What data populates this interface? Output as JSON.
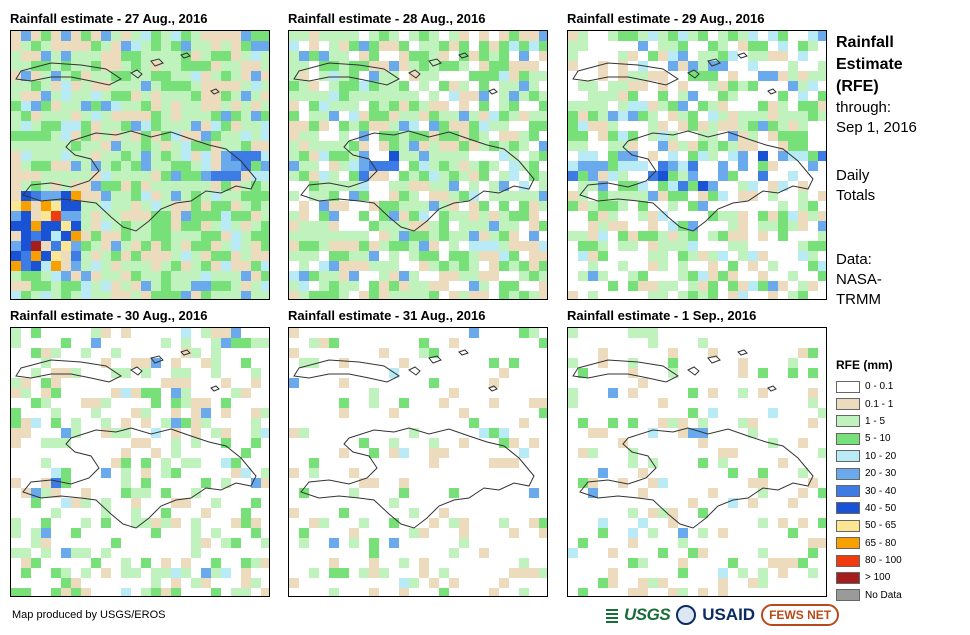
{
  "panels": [
    {
      "title": "Rainfall estimate - 27 Aug., 2016",
      "wetness": 0.92,
      "hotspot": "sw"
    },
    {
      "title": "Rainfall estimate - 28 Aug., 2016",
      "wetness": 0.72,
      "hotspot": "center"
    },
    {
      "title": "Rainfall estimate - 29 Aug., 2016",
      "wetness": 0.55,
      "hotspot": "band"
    },
    {
      "title": "Rainfall estimate - 30 Aug., 2016",
      "wetness": 0.32,
      "hotspot": "haiti"
    },
    {
      "title": "Rainfall estimate - 31 Aug., 2016",
      "wetness": 0.1,
      "hotspot": "none"
    },
    {
      "title": "Rainfall estimate - 1 Sep., 2016",
      "wetness": 0.14,
      "hotspot": "none"
    }
  ],
  "info": {
    "title_lines": [
      "Rainfall",
      "Estimate",
      "(RFE)"
    ],
    "through_label": "through:",
    "through_date": "Sep 1, 2016",
    "totals_lines": [
      "Daily",
      "Totals"
    ],
    "data_lines": [
      "Data:",
      "NASA-",
      "TRMM"
    ]
  },
  "legend": {
    "title": "RFE (mm)",
    "items": [
      {
        "label": "0 - 0.1",
        "color": "#ffffff"
      },
      {
        "label": "0.1 - 1",
        "color": "#eddbbd"
      },
      {
        "label": "1 - 5",
        "color": "#c0f2bd"
      },
      {
        "label": "5 - 10",
        "color": "#78e078"
      },
      {
        "label": "10 - 20",
        "color": "#b9ebf7"
      },
      {
        "label": "20 - 30",
        "color": "#6aa9ec"
      },
      {
        "label": "30 - 40",
        "color": "#3c7ce4"
      },
      {
        "label": "40 - 50",
        "color": "#1a52d6"
      },
      {
        "label": "50 - 65",
        "color": "#fbe694"
      },
      {
        "label": "65 - 80",
        "color": "#f8a000"
      },
      {
        "label": "80 - 100",
        "color": "#f03b0e"
      },
      {
        "label": "> 100",
        "color": "#a51e1e"
      },
      {
        "label": "No Data",
        "color": "#9a9a9a"
      }
    ]
  },
  "footer": {
    "credit": "Map produced by USGS/EROS"
  },
  "logos": {
    "usgs": "USGS",
    "usaid": "USAID",
    "fews": "FEWS NET"
  }
}
